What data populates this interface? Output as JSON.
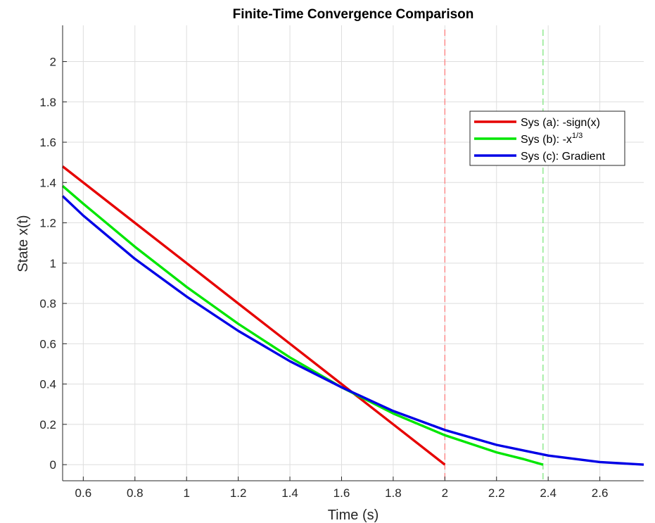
{
  "chart_data": {
    "type": "line",
    "title": "Finite-Time Convergence Comparison",
    "xlabel": "Time (s)",
    "ylabel": "State x(t)",
    "xlim": [
      0.52,
      2.77
    ],
    "ylim": [
      -0.08,
      2.18
    ],
    "xticks": [
      0.6,
      0.8,
      1.0,
      1.2,
      1.4,
      1.6,
      1.8,
      2.0,
      2.2,
      2.4,
      2.6
    ],
    "xtick_labels": [
      "0.6",
      "0.8",
      "1",
      "1.2",
      "1.4",
      "1.6",
      "1.8",
      "2",
      "2.2",
      "2.4",
      "2.6"
    ],
    "yticks": [
      0,
      0.2,
      0.4,
      0.6,
      0.8,
      1.0,
      1.2,
      1.4,
      1.6,
      1.8,
      2.0
    ],
    "ytick_labels": [
      "0",
      "0.2",
      "0.4",
      "0.6",
      "0.8",
      "1",
      "1.2",
      "1.4",
      "1.6",
      "1.8",
      "2"
    ],
    "grid": true,
    "legend_position": "upper-right",
    "series": [
      {
        "name": "Sys (a): -sign(x)",
        "legend_main": "Sys (a): -sign(x)",
        "legend_sup": "",
        "color": "#e60000",
        "x": [
          0.52,
          0.8,
          1.0,
          1.2,
          1.4,
          1.6,
          1.8,
          2.0
        ],
        "y": [
          1.48,
          1.2,
          1.0,
          0.8,
          0.6,
          0.4,
          0.2,
          0.0
        ]
      },
      {
        "name": "Sys (b): -x^(1/3)",
        "legend_main": "Sys (b): -x",
        "legend_sup": "1/3",
        "color": "#00e600",
        "x": [
          0.52,
          0.6,
          0.8,
          1.0,
          1.2,
          1.4,
          1.6,
          1.8,
          2.0,
          2.2,
          2.3,
          2.38
        ],
        "y": [
          1.383,
          1.295,
          1.081,
          0.882,
          0.699,
          0.532,
          0.384,
          0.254,
          0.146,
          0.061,
          0.029,
          0.0
        ]
      },
      {
        "name": "Sys (c): Gradient",
        "legend_main": "Sys (c): Gradient",
        "legend_sup": "",
        "color": "#0000e6",
        "x": [
          0.52,
          0.6,
          0.8,
          1.0,
          1.2,
          1.4,
          1.6,
          1.8,
          2.0,
          2.2,
          2.4,
          2.6,
          2.77
        ],
        "y": [
          1.333,
          1.236,
          1.021,
          0.834,
          0.664,
          0.513,
          0.384,
          0.266,
          0.172,
          0.098,
          0.045,
          0.013,
          0.0
        ]
      }
    ],
    "reference_lines": [
      {
        "x": 2.0,
        "color": "#ff8080",
        "style": "dashed"
      },
      {
        "x": 2.38,
        "color": "#80e680",
        "style": "dashed"
      }
    ]
  }
}
